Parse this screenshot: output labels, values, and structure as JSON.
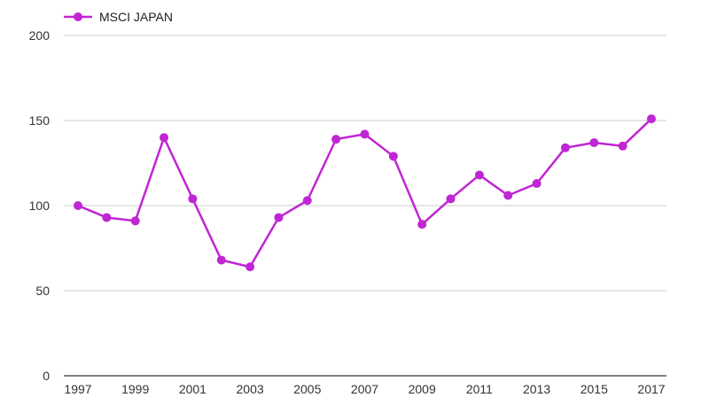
{
  "chart_data": {
    "type": "line",
    "title": "",
    "xlabel": "",
    "ylabel": "",
    "x": [
      1997,
      1998,
      1999,
      2000,
      2001,
      2002,
      2003,
      2004,
      2005,
      2006,
      2007,
      2008,
      2009,
      2010,
      2011,
      2012,
      2013,
      2014,
      2015,
      2016,
      2017
    ],
    "series": [
      {
        "name": "MSCI JAPAN",
        "color": "#c026d3",
        "values": [
          100,
          93,
          91,
          140,
          104,
          68,
          64,
          93,
          103,
          139,
          142,
          129,
          89,
          104,
          118,
          106,
          113,
          134,
          137,
          135,
          151
        ]
      }
    ],
    "ylim": [
      0,
      200
    ],
    "yticks": [
      0,
      50,
      100,
      150,
      200
    ],
    "xticks": [
      "1997",
      "1999",
      "2001",
      "2003",
      "2005",
      "2007",
      "2009",
      "2011",
      "2013",
      "2015",
      "2017"
    ],
    "grid": true,
    "legend": "top-left"
  }
}
